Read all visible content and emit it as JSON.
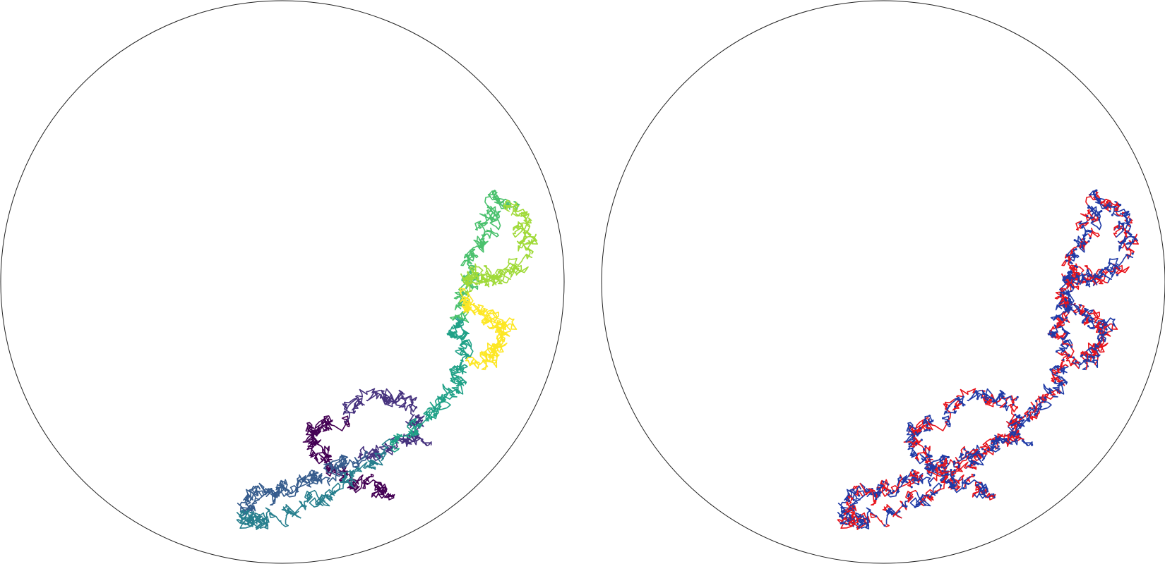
{
  "panels": [
    {
      "id": "left",
      "description_style": "viridis",
      "colors": [
        "#440154",
        "#46327e",
        "#365c8d",
        "#277f8e",
        "#1fa187",
        "#4ac16d",
        "#a0da39",
        "#fde725"
      ],
      "seed": 7
    },
    {
      "id": "right",
      "description_style": "alternating",
      "colors": [
        "#e8141c",
        "#1f3aa6"
      ],
      "seed": 7
    }
  ],
  "walk": {
    "anchors": [
      [
        0.7,
        0.87
      ],
      [
        0.64,
        0.86
      ],
      [
        0.58,
        0.83
      ],
      [
        0.55,
        0.78
      ],
      [
        0.58,
        0.75
      ],
      [
        0.67,
        0.7
      ],
      [
        0.73,
        0.72
      ],
      [
        0.74,
        0.78
      ],
      [
        0.68,
        0.8
      ],
      [
        0.62,
        0.82
      ],
      [
        0.56,
        0.85
      ],
      [
        0.5,
        0.87
      ],
      [
        0.45,
        0.88
      ],
      [
        0.43,
        0.92
      ],
      [
        0.46,
        0.93
      ],
      [
        0.53,
        0.9
      ],
      [
        0.6,
        0.86
      ],
      [
        0.68,
        0.8
      ],
      [
        0.76,
        0.74
      ],
      [
        0.8,
        0.69
      ],
      [
        0.82,
        0.64
      ],
      [
        0.81,
        0.58
      ],
      [
        0.82,
        0.52
      ],
      [
        0.84,
        0.46
      ],
      [
        0.86,
        0.4
      ],
      [
        0.88,
        0.35
      ],
      [
        0.92,
        0.38
      ],
      [
        0.94,
        0.44
      ],
      [
        0.89,
        0.5
      ],
      [
        0.84,
        0.48
      ],
      [
        0.82,
        0.53
      ],
      [
        0.86,
        0.56
      ],
      [
        0.9,
        0.58
      ],
      [
        0.88,
        0.62
      ],
      [
        0.84,
        0.64
      ]
    ],
    "steps_per_segment": 95,
    "jitter": 0.018
  }
}
